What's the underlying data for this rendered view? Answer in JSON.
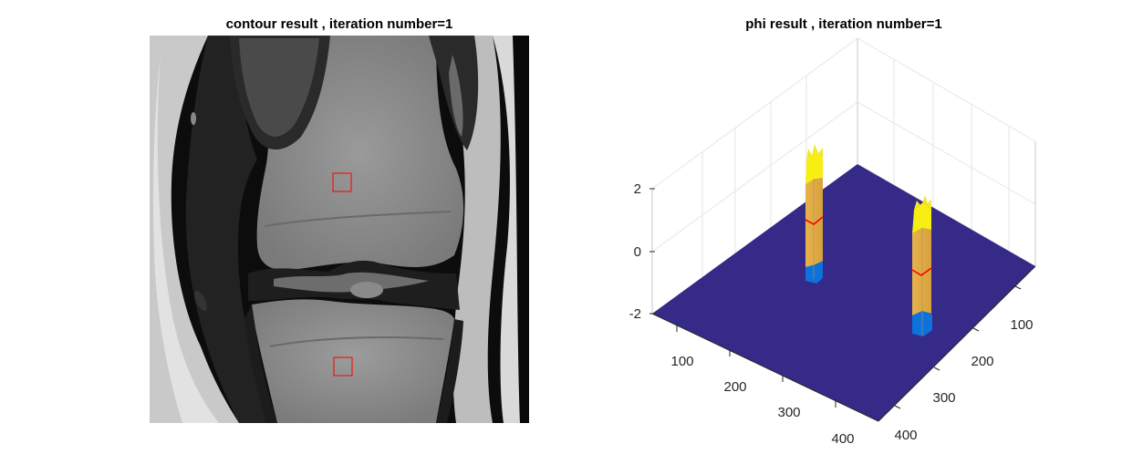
{
  "figure": {
    "background": "#ffffff"
  },
  "chart_data": [
    {
      "type": "image",
      "title": "contour result , iteration number=1",
      "image_kind": "grayscale MRI (knee, coronal)",
      "overlay": {
        "kind": "contour",
        "color": "#ff0000",
        "shapes": "2 small squares"
      }
    },
    {
      "type": "surface",
      "title": "phi result , iteration number=1",
      "view": "3-D, rotated",
      "x_ticks": [
        "100",
        "200",
        "300",
        "400"
      ],
      "y_ticks": [
        "100",
        "200",
        "300",
        "400"
      ],
      "z_ticks": [
        "2",
        "0",
        "-2"
      ],
      "zlim": [
        -2,
        2
      ],
      "grid": true,
      "colormap": "parula",
      "base_value": -2,
      "base_color": "#352a87",
      "peaks": [
        {
          "label": "upper region",
          "height": 2
        },
        {
          "label": "lower region",
          "height": 2
        }
      ],
      "zero_level_color": "#ff0000"
    }
  ]
}
